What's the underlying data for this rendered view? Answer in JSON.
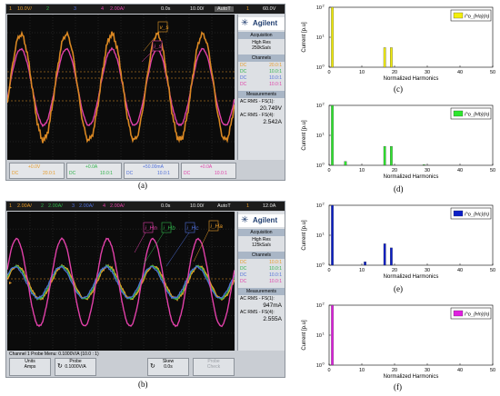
{
  "scope_a": {
    "topbar": {
      "ch1": "1",
      "ch1_scale": "10.0V/",
      "ch2": "2",
      "ch3": "3",
      "ch4": "4",
      "ch4_scale": "2.00A/",
      "delay": "0.0s",
      "timebase": "10.00/",
      "mode": "AutoT",
      "trig": "1",
      "trig_level": "60.0V"
    },
    "brand": "Agilent",
    "acq_header": "Acquisition",
    "acq_mode": "High Res",
    "acq_rate": "250kSa/s",
    "channels_header": "Channels",
    "channels": [
      {
        "coupling": "DC",
        "probe": "20.0:1",
        "color": "#e69a28"
      },
      {
        "coupling": "DC",
        "probe": "10.0:1",
        "color": "#2fb24a"
      },
      {
        "coupling": "DC",
        "probe": "10.0:1",
        "color": "#4f6fd8"
      },
      {
        "coupling": "DC",
        "probe": "10.0:1",
        "color": "#e040a8"
      }
    ],
    "meas_header": "Measurements",
    "meas1_label": "AC RMS - FS(1):",
    "meas1_value": "20.749V",
    "meas2_label": "AC RMS - FS(4):",
    "meas2_value": "2.542A",
    "bottom": [
      {
        "offset": "+0.0V",
        "coupling": "DC",
        "probe": "20.0:1"
      },
      {
        "offset": "+0.0A",
        "coupling": "DC",
        "probe": "10.0:1"
      },
      {
        "offset": "+50.00mA",
        "coupling": "DC",
        "probe": "10.0:1"
      },
      {
        "offset": "+0.0A",
        "coupling": "DC",
        "probe": "10.0:1"
      }
    ],
    "trace_labels": [
      "v_s",
      "i_s"
    ]
  },
  "scope_b": {
    "topbar": {
      "ch1": "1",
      "ch1_scale": "2.00A/",
      "ch2": "2",
      "ch2_scale": "2.00A/",
      "ch3": "3",
      "ch3_scale": "2.00A/",
      "ch4": "4",
      "ch4_scale": "2.00A/",
      "delay": "0.0s",
      "timebase": "10.00/",
      "mode": "AutoT",
      "trig": "1",
      "trig_level": "12.0A"
    },
    "brand": "Agilent",
    "acq_header": "Acquisition",
    "acq_mode": "High Res",
    "acq_rate": "125kSa/s",
    "channels_header": "Channels",
    "channels": [
      {
        "coupling": "DC",
        "probe": "10.0:1",
        "color": "#e69a28"
      },
      {
        "coupling": "DC",
        "probe": "10.0:1",
        "color": "#2fb24a"
      },
      {
        "coupling": "DC",
        "probe": "10.0:1",
        "color": "#4f6fd8"
      },
      {
        "coupling": "DC",
        "probe": "10.0:1",
        "color": "#e040a8"
      }
    ],
    "meas_header": "Measurements",
    "meas1_label": "AC RMS - FS(1):",
    "meas1_value": "947mA",
    "meas2_label": "AC RMS - FS(4):",
    "meas2_value": "2.555A",
    "probe_menu": "Channel 1 Probe Menu: 0.1000V/A (10.0 : 1)",
    "softkeys": [
      {
        "title": "Units",
        "value": "Amps"
      },
      {
        "title": "Probe",
        "value": "0.1000V/A"
      },
      {
        "title": "Skew",
        "value": "0.0s"
      },
      {
        "title": "Probe",
        "value": "Check"
      }
    ],
    "trace_labels": [
      "i_Ha",
      "i_Hb",
      "i_Hc",
      "i_Hn"
    ]
  },
  "labels": {
    "a": "(a)",
    "b": "(b)",
    "c": "(c)",
    "d": "(d)",
    "e": "(e)",
    "f": "(f)"
  },
  "chart_data": [
    {
      "type": "bar",
      "panel": "(c)",
      "legend": "i^o_{Ha}(n)",
      "color": "#f2ee0c",
      "xlabel": "Normalized Harmonics",
      "ylabel": "Current [p.u]",
      "x": [
        1,
        17,
        19
      ],
      "values": [
        100,
        4.5,
        4.5
      ],
      "xlim": [
        0,
        50
      ],
      "ylim": [
        1,
        100
      ],
      "ylog": true,
      "xticks": [
        0,
        10,
        20,
        30,
        40,
        50
      ],
      "yticks": [
        "10^0",
        "10^1",
        "10^2"
      ]
    },
    {
      "type": "bar",
      "panel": "(d)",
      "legend": "i^o_{Hb}(n)",
      "color": "#2ee62e",
      "xlabel": "Normalized Harmonics",
      "ylabel": "Current [p.u]",
      "x": [
        1,
        5,
        17,
        19,
        29
      ],
      "values": [
        100,
        1.35,
        4.3,
        4.3,
        1.05
      ],
      "xlim": [
        0,
        50
      ],
      "ylim": [
        1,
        100
      ],
      "ylog": true,
      "xticks": [
        0,
        10,
        20,
        30,
        40,
        50
      ],
      "yticks": [
        "10^0",
        "10^1",
        "10^2"
      ]
    },
    {
      "type": "bar",
      "panel": "(e)",
      "legend": "i^o_{Hc}(n)",
      "color": "#0b1fc8",
      "xlabel": "Normalized Harmonics",
      "ylabel": "Current [p.u]",
      "x": [
        1,
        11,
        17,
        19
      ],
      "values": [
        100,
        1.3,
        5.2,
        3.8
      ],
      "xlim": [
        0,
        50
      ],
      "ylim": [
        1,
        100
      ],
      "ylog": true,
      "xticks": [
        0,
        10,
        20,
        30,
        40,
        50
      ],
      "yticks": [
        "10^0",
        "10^1",
        "10^2"
      ]
    },
    {
      "type": "bar",
      "panel": "(f)",
      "legend": "i^o_{Hn}(n)",
      "color": "#e020e0",
      "xlabel": "Normalized Harmonics",
      "ylabel": "Current [p.u]",
      "x": [
        1
      ],
      "values": [
        100
      ],
      "xlim": [
        0,
        50
      ],
      "ylim": [
        1,
        100
      ],
      "ylog": true,
      "xticks": [
        0,
        10,
        20,
        30,
        40,
        50
      ],
      "yticks": [
        "10^0",
        "10^1",
        "10^2"
      ]
    }
  ]
}
